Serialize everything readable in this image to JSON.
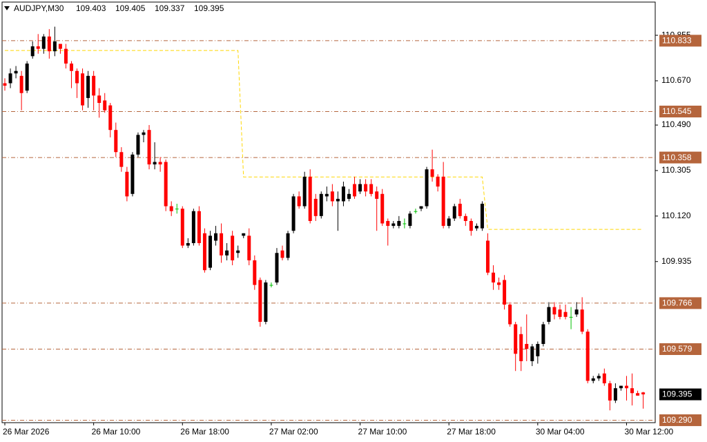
{
  "chart_data": {
    "type": "candlestick",
    "title": "AUDJPY,M30",
    "categories": [
      "26 Mar 2026",
      null,
      null,
      null,
      null,
      null,
      null,
      null,
      null,
      null,
      null,
      null,
      null,
      null,
      null,
      null,
      "26 Mar 10:00",
      null,
      null,
      null,
      null,
      null,
      null,
      null,
      null,
      null,
      null,
      null,
      null,
      null,
      null,
      null,
      "26 Mar 18:00",
      null,
      null,
      null,
      null,
      null,
      null,
      null,
      null,
      null,
      null,
      null,
      null,
      null,
      null,
      null,
      "27 Mar 02:00",
      null,
      null,
      null,
      null,
      null,
      null,
      null,
      null,
      null,
      null,
      null,
      null,
      null,
      null,
      null,
      "27 Mar 10:00",
      null,
      null,
      null,
      null,
      null,
      null,
      null,
      null,
      null,
      null,
      null,
      null,
      null,
      null,
      null,
      "27 Mar 18:00",
      null,
      null,
      null,
      null,
      null,
      null,
      null,
      null,
      null,
      null,
      null,
      null,
      null,
      null,
      null,
      "30 Mar 04:00",
      null,
      null,
      null,
      null,
      null,
      null,
      null,
      null,
      null,
      null,
      null,
      null,
      null,
      null,
      null,
      "30 Mar 12:00",
      null,
      null,
      null
    ],
    "open": [
      110.66,
      110.66,
      110.7,
      110.69,
      110.63,
      110.77,
      110.81,
      110.8,
      110.85,
      110.79,
      110.82,
      110.8,
      110.74,
      110.71,
      110.7,
      110.6,
      110.69,
      110.61,
      110.59,
      110.57,
      110.47,
      110.38,
      110.3,
      110.21,
      110.37,
      110.45,
      110.47,
      110.33,
      110.34,
      110.34,
      110.16,
      110.15,
      110.15,
      110.0,
      110.01,
      110.14,
      110.05,
      109.91,
      110.02,
      110.05,
      109.96,
      110.04,
      109.97,
      110.04,
      110.04,
      109.94,
      109.86,
      109.69,
      109.84,
      109.85,
      109.98,
      109.95,
      110.06,
      110.2,
      110.16,
      110.28,
      110.19,
      110.12,
      110.2,
      110.22,
      110.18,
      110.18,
      110.19,
      110.25,
      110.22,
      110.25,
      110.25,
      110.22,
      110.21,
      110.1,
      110.08,
      110.08,
      110.09,
      110.08,
      110.14,
      110.15,
      110.16,
      110.31,
      110.28,
      110.28,
      110.08,
      110.11,
      110.17,
      110.12,
      110.1,
      110.07,
      110.07,
      110.02,
      109.89,
      109.85,
      109.86,
      109.76,
      109.68,
      109.64,
      109.6,
      109.53,
      109.55,
      109.6,
      109.69,
      109.75,
      109.74,
      109.73,
      109.71,
      109.72,
      109.74,
      109.65,
      109.45,
      109.46,
      109.48,
      109.44,
      109.37,
      109.42,
      109.43,
      109.42,
      109.4,
      109.403
    ],
    "high": [
      110.68,
      110.72,
      110.73,
      110.71,
      110.75,
      110.83,
      110.86,
      110.86,
      110.88,
      110.89,
      110.82,
      110.82,
      110.75,
      110.72,
      110.72,
      110.71,
      110.71,
      110.64,
      110.62,
      110.58,
      110.5,
      110.4,
      110.32,
      110.38,
      110.46,
      110.47,
      110.49,
      110.42,
      110.36,
      110.35,
      110.18,
      110.17,
      110.16,
      110.03,
      110.15,
      110.16,
      110.07,
      110.06,
      110.08,
      110.09,
      110.01,
      110.06,
      110.0,
      110.05,
      110.07,
      109.96,
      109.87,
      109.86,
      109.85,
      109.99,
      110.0,
      110.06,
      110.21,
      110.22,
      110.3,
      110.31,
      110.21,
      110.22,
      110.24,
      110.25,
      110.22,
      110.26,
      110.23,
      110.28,
      110.27,
      110.27,
      110.27,
      110.24,
      110.23,
      110.11,
      110.1,
      110.12,
      110.11,
      110.14,
      110.15,
      110.16,
      110.32,
      110.39,
      110.29,
      110.34,
      110.12,
      110.17,
      110.19,
      110.13,
      110.11,
      110.09,
      110.18,
      110.05,
      109.92,
      109.87,
      109.88,
      109.77,
      109.69,
      109.67,
      109.72,
      109.6,
      109.61,
      109.69,
      109.77,
      109.77,
      109.76,
      109.76,
      109.75,
      109.77,
      109.79,
      109.66,
      109.47,
      109.48,
      109.5,
      109.45,
      109.44,
      109.43,
      109.47,
      109.48,
      109.41,
      109.405
    ],
    "low": [
      110.63,
      110.64,
      110.68,
      110.55,
      110.62,
      110.76,
      110.78,
      110.78,
      110.76,
      110.77,
      110.78,
      110.72,
      110.64,
      110.6,
      110.55,
      110.56,
      110.55,
      110.52,
      110.54,
      110.44,
      110.36,
      110.3,
      110.18,
      110.2,
      110.36,
      110.42,
      110.31,
      110.31,
      110.3,
      110.14,
      110.12,
      110.13,
      109.99,
      109.99,
      110.0,
      110.0,
      109.89,
      109.9,
      110.0,
      109.93,
      109.94,
      109.92,
      109.95,
      110.03,
      109.92,
      109.82,
      109.67,
      109.68,
      109.83,
      109.84,
      109.94,
      109.94,
      110.05,
      110.15,
      110.15,
      110.09,
      110.1,
      110.11,
      110.18,
      110.16,
      110.06,
      110.16,
      110.18,
      110.19,
      110.21,
      110.2,
      110.2,
      110.06,
      110.08,
      110.0,
      110.07,
      110.07,
      110.07,
      110.07,
      110.13,
      110.14,
      110.15,
      110.26,
      110.22,
      110.07,
      110.07,
      110.1,
      110.11,
      110.08,
      110.04,
      110.06,
      110.06,
      109.88,
      109.82,
      109.82,
      109.74,
      109.67,
      109.49,
      109.49,
      109.53,
      109.51,
      109.52,
      109.59,
      109.68,
      109.7,
      109.7,
      109.7,
      109.66,
      109.71,
      109.64,
      109.44,
      109.44,
      109.45,
      109.43,
      109.33,
      109.36,
      109.41,
      109.37,
      109.35,
      109.39,
      109.337
    ],
    "close": [
      110.65,
      110.7,
      110.71,
      110.62,
      110.74,
      110.81,
      110.8,
      110.85,
      110.79,
      110.83,
      110.8,
      110.74,
      110.71,
      110.66,
      110.57,
      110.69,
      110.61,
      110.58,
      110.55,
      110.47,
      110.38,
      110.32,
      110.2,
      110.37,
      110.45,
      110.46,
      110.33,
      110.34,
      110.33,
      110.16,
      110.14,
      110.15,
      110.0,
      110.01,
      110.14,
      110.01,
      109.9,
      110.04,
      110.05,
      109.96,
      109.98,
      109.94,
      109.98,
      110.05,
      109.94,
      109.84,
      109.69,
      109.85,
      109.84,
      109.97,
      109.95,
      110.05,
      110.2,
      110.16,
      110.28,
      110.1,
      110.12,
      110.21,
      110.21,
      110.18,
      110.19,
      110.24,
      110.21,
      110.2,
      110.25,
      110.22,
      110.21,
      110.19,
      110.09,
      110.08,
      110.09,
      110.1,
      110.09,
      110.13,
      110.14,
      110.16,
      110.31,
      110.28,
      110.24,
      110.08,
      110.11,
      110.16,
      110.12,
      110.1,
      110.06,
      110.08,
      110.17,
      109.89,
      109.85,
      109.84,
      109.76,
      109.68,
      109.56,
      109.53,
      109.58,
      109.59,
      109.6,
      109.68,
      109.75,
      109.72,
      109.71,
      109.71,
      109.71,
      109.74,
      109.65,
      109.45,
      109.46,
      109.47,
      109.44,
      109.37,
      109.42,
      109.43,
      109.42,
      109.4,
      109.39,
      109.395
    ],
    "up_color": "#000000",
    "down_color": "#ff0000",
    "doji_color": "#00c000",
    "indicator": {
      "color": "#ffd700",
      "values": [
        110.793,
        110.793,
        110.793,
        110.793,
        110.793,
        110.793,
        110.793,
        110.793,
        110.793,
        110.793,
        110.793,
        110.793,
        110.793,
        110.793,
        110.793,
        110.793,
        110.793,
        110.793,
        110.793,
        110.793,
        110.793,
        110.793,
        110.793,
        110.793,
        110.793,
        110.793,
        110.793,
        110.793,
        110.793,
        110.793,
        110.793,
        110.793,
        110.793,
        110.793,
        110.793,
        110.793,
        110.793,
        110.793,
        110.793,
        110.793,
        110.793,
        110.793,
        110.793,
        110.279,
        110.279,
        110.279,
        110.279,
        110.279,
        110.279,
        110.279,
        110.279,
        110.279,
        110.279,
        110.279,
        110.279,
        110.279,
        110.279,
        110.279,
        110.279,
        110.279,
        110.279,
        110.279,
        110.279,
        110.279,
        110.279,
        110.279,
        110.279,
        110.279,
        110.279,
        110.279,
        110.279,
        110.279,
        110.279,
        110.279,
        110.279,
        110.279,
        110.279,
        110.279,
        110.279,
        110.279,
        110.279,
        110.279,
        110.279,
        110.279,
        110.279,
        110.279,
        110.279,
        110.066,
        110.066,
        110.066,
        110.066,
        110.066,
        110.066,
        110.066,
        110.066,
        110.066,
        110.066,
        110.066,
        110.066,
        110.066,
        110.066,
        110.066,
        110.066,
        110.066,
        110.066,
        110.066,
        110.066,
        110.066,
        110.066,
        110.066,
        110.066,
        110.066,
        110.066,
        110.066,
        110.066,
        110.066
      ]
    },
    "levels": [
      110.833,
      110.545,
      110.358,
      109.766,
      109.579,
      {
        "value": 109.29,
        "label": "109.290"
      }
    ],
    "level_color": "#b5653c",
    "ylim": [
      109.28,
      110.99
    ],
    "yticks": [
      110.855,
      {
        "value": 110.67,
        "label": "110.670"
      },
      {
        "value": 110.49,
        "label": "110.490"
      },
      110.305,
      {
        "value": 110.12,
        "label": "110.120"
      },
      109.935
    ]
  }
}
